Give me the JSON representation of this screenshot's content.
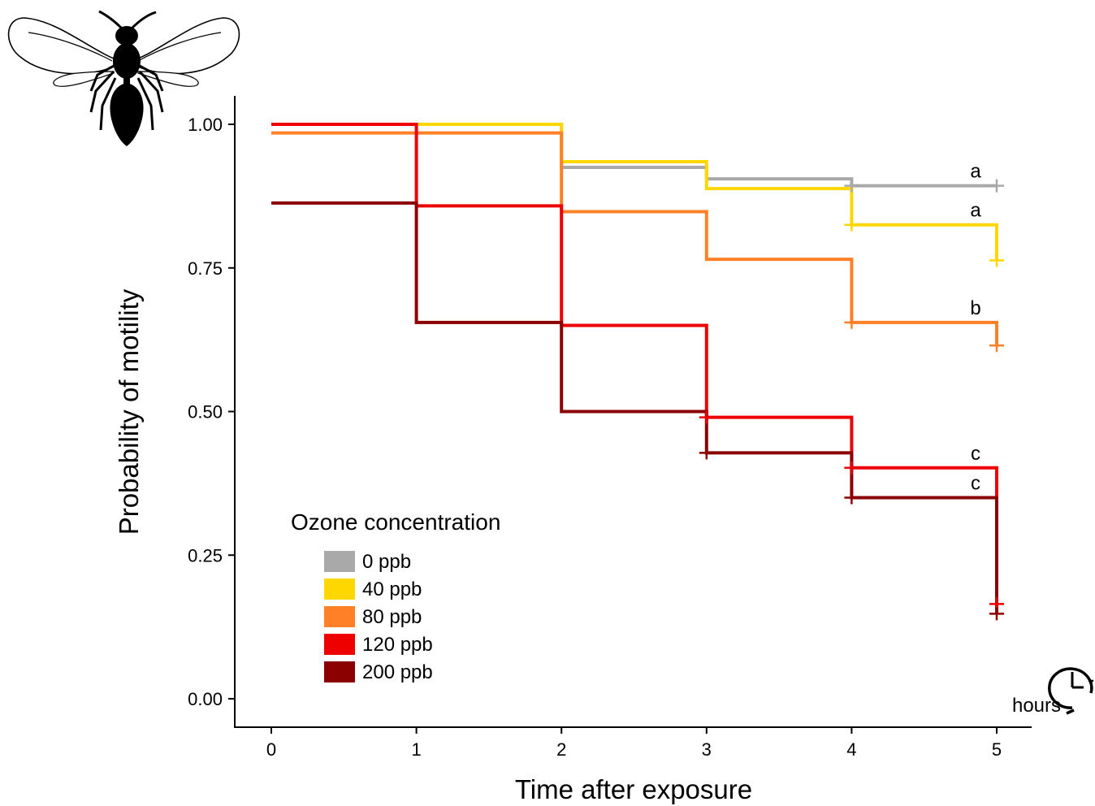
{
  "chart_data": {
    "type": "line",
    "step": "post",
    "xlabel": "Time after exposure",
    "ylabel": "Probability of motility",
    "xlim": [
      -0.25,
      5.25
    ],
    "ylim": [
      -0.05,
      1.05
    ],
    "x_ticks": [
      0,
      1,
      2,
      3,
      4,
      5
    ],
    "x_tick_labels": [
      "0",
      "1",
      "2",
      "3",
      "4",
      "5"
    ],
    "y_ticks": [
      0,
      0.25,
      0.5,
      0.75,
      1
    ],
    "y_tick_labels": [
      "0.00",
      "0.25",
      "0.50",
      "0.75",
      "1.00"
    ],
    "x_unit_label": "hours",
    "grid": false,
    "legend": {
      "title": "Ozone concentration",
      "position": "bottom-left"
    },
    "series": [
      {
        "name": "0 ppb",
        "color": "#a9a9a9",
        "x": [
          0,
          1,
          2,
          3,
          4,
          5
        ],
        "y": [
          1.0,
          1.0,
          0.925,
          0.905,
          0.893,
          0.893
        ],
        "censor_x": [
          4,
          5
        ],
        "censor_y": [
          0.893,
          0.893
        ],
        "sig_letter": "a"
      },
      {
        "name": "40 ppb",
        "color": "#ffd700",
        "x": [
          0,
          1,
          2,
          3,
          4,
          5
        ],
        "y": [
          1.0,
          1.0,
          0.935,
          0.888,
          0.825,
          0.763
        ],
        "censor_x": [
          4,
          5
        ],
        "censor_y": [
          0.825,
          0.763
        ],
        "sig_letter": "a"
      },
      {
        "name": "80 ppb",
        "color": "#ff8027",
        "x": [
          0,
          1,
          2,
          3,
          4,
          5
        ],
        "y": [
          0.985,
          0.985,
          0.848,
          0.765,
          0.655,
          0.615
        ],
        "censor_x": [
          4,
          5
        ],
        "censor_y": [
          0.655,
          0.615
        ],
        "sig_letter": "b"
      },
      {
        "name": "120 ppb",
        "color": "#ee0000",
        "x": [
          0,
          1,
          2,
          3,
          4,
          5
        ],
        "y": [
          1.0,
          0.858,
          0.65,
          0.49,
          0.402,
          0.165
        ],
        "censor_x": [
          3,
          4,
          5
        ],
        "censor_y": [
          0.49,
          0.402,
          0.165
        ],
        "sig_letter": "c"
      },
      {
        "name": "200 ppb",
        "color": "#8b0000",
        "x": [
          0,
          1,
          2,
          3,
          4,
          5
        ],
        "y": [
          0.863,
          0.655,
          0.5,
          0.428,
          0.35,
          0.148
        ],
        "censor_x": [
          3,
          4,
          5
        ],
        "censor_y": [
          0.428,
          0.35,
          0.148
        ],
        "sig_letter": "c"
      }
    ]
  },
  "icons": {
    "insect": "wasp-silhouette-icon",
    "clock": "clock-icon"
  }
}
